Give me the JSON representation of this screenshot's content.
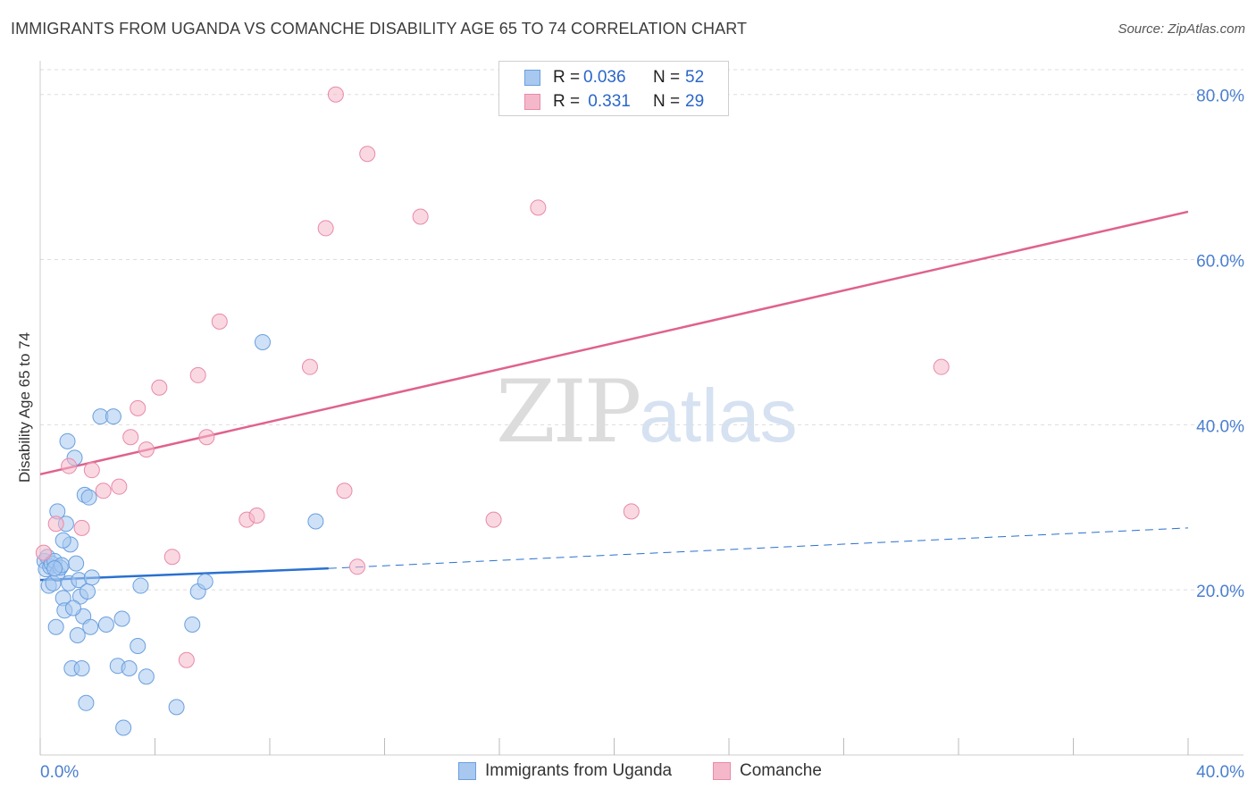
{
  "title": "IMMIGRANTS FROM UGANDA VS COMANCHE DISABILITY AGE 65 TO 74 CORRELATION CHART",
  "source": "Source: ZipAtlas.com",
  "watermark": {
    "zip": "ZIP",
    "atlas": "atlas"
  },
  "stats": [
    {
      "r_label": "R = ",
      "r_value": "0.036",
      "n_label": "N = ",
      "n_value": "52",
      "color": "#a8c8f0"
    },
    {
      "r_label": "R = ",
      "r_value": " 0.331",
      "n_label": "N = ",
      "n_value": "29",
      "color": "#f5b8cb"
    }
  ],
  "legend": [
    {
      "label": "Immigrants from Uganda",
      "color": "#a8c8f0"
    },
    {
      "label": "Comanche",
      "color": "#f5b8cb"
    }
  ],
  "colors": {
    "blue_fill": "#a8c8f0",
    "blue_stroke": "#6a9fde",
    "blue_line": "#2a70d0",
    "pink_fill": "#f5b8cb",
    "pink_stroke": "#e88aa8",
    "pink_line": "#e0628c",
    "axis_text": "#4a7fcf",
    "grid": "#dddddd"
  },
  "chart_data": {
    "type": "scatter",
    "title": "IMMIGRANTS FROM UGANDA VS COMANCHE DISABILITY AGE 65 TO 74 CORRELATION CHART",
    "xlabel": "",
    "ylabel": "Disability Age 65 to 74",
    "xlim": [
      0,
      40
    ],
    "ylim": [
      0,
      83
    ],
    "x_tick_labels": [
      "0.0%",
      "40.0%"
    ],
    "y_ticks": [
      20,
      40,
      60,
      80
    ],
    "y_tick_labels": [
      "20.0%",
      "40.0%",
      "60.0%",
      "80.0%"
    ],
    "series": [
      {
        "name": "Immigrants from Uganda",
        "points": [
          [
            0.15,
            23.5
          ],
          [
            0.2,
            22.5
          ],
          [
            0.25,
            24.0
          ],
          [
            0.3,
            20.5
          ],
          [
            0.35,
            22.8
          ],
          [
            0.4,
            23.2
          ],
          [
            0.45,
            20.8
          ],
          [
            0.5,
            23.5
          ],
          [
            0.55,
            15.5
          ],
          [
            0.6,
            22.0
          ],
          [
            0.6,
            29.5
          ],
          [
            0.7,
            22.7
          ],
          [
            0.75,
            23.0
          ],
          [
            0.8,
            19.0
          ],
          [
            0.85,
            17.5
          ],
          [
            0.9,
            28.0
          ],
          [
            0.95,
            38.0
          ],
          [
            1.0,
            20.8
          ],
          [
            1.05,
            25.5
          ],
          [
            1.1,
            10.5
          ],
          [
            1.2,
            36.0
          ],
          [
            1.25,
            23.2
          ],
          [
            1.3,
            14.5
          ],
          [
            1.35,
            21.2
          ],
          [
            1.4,
            19.2
          ],
          [
            1.45,
            10.5
          ],
          [
            1.5,
            16.8
          ],
          [
            1.55,
            31.5
          ],
          [
            1.6,
            6.3
          ],
          [
            1.65,
            19.8
          ],
          [
            1.7,
            31.2
          ],
          [
            1.75,
            15.5
          ],
          [
            1.8,
            21.5
          ],
          [
            2.1,
            41.0
          ],
          [
            2.3,
            15.8
          ],
          [
            2.55,
            41.0
          ],
          [
            2.7,
            10.8
          ],
          [
            2.85,
            16.5
          ],
          [
            3.1,
            10.5
          ],
          [
            3.4,
            13.2
          ],
          [
            3.5,
            20.5
          ],
          [
            3.7,
            9.5
          ],
          [
            4.75,
            5.8
          ],
          [
            5.5,
            19.8
          ],
          [
            5.3,
            15.8
          ],
          [
            5.75,
            21.0
          ],
          [
            7.75,
            50.0
          ],
          [
            9.6,
            28.3
          ],
          [
            2.9,
            3.3
          ],
          [
            0.5,
            22.6
          ],
          [
            0.8,
            26.0
          ],
          [
            1.15,
            17.8
          ]
        ],
        "trend": {
          "x": [
            0,
            10.05
          ],
          "y": [
            21.2,
            22.6
          ]
        },
        "trend_extended": {
          "x": [
            10.05,
            40
          ],
          "y": [
            22.6,
            27.5
          ]
        }
      },
      {
        "name": "Comanche",
        "points": [
          [
            0.12,
            24.5
          ],
          [
            0.55,
            28.0
          ],
          [
            1.0,
            35.0
          ],
          [
            1.45,
            27.5
          ],
          [
            1.8,
            34.5
          ],
          [
            2.2,
            32.0
          ],
          [
            2.75,
            32.5
          ],
          [
            3.15,
            38.5
          ],
          [
            3.4,
            42.0
          ],
          [
            3.7,
            37.0
          ],
          [
            4.15,
            44.5
          ],
          [
            4.6,
            24.0
          ],
          [
            5.1,
            11.5
          ],
          [
            5.5,
            46.0
          ],
          [
            5.8,
            38.5
          ],
          [
            6.25,
            52.5
          ],
          [
            7.2,
            28.5
          ],
          [
            7.55,
            29.0
          ],
          [
            9.4,
            47.0
          ],
          [
            9.95,
            63.8
          ],
          [
            10.3,
            80.0
          ],
          [
            10.6,
            32.0
          ],
          [
            11.05,
            22.8
          ],
          [
            11.4,
            72.8
          ],
          [
            13.25,
            65.2
          ],
          [
            15.8,
            28.5
          ],
          [
            17.35,
            66.3
          ],
          [
            20.6,
            29.5
          ],
          [
            31.4,
            47.0
          ]
        ],
        "trend": {
          "x": [
            0,
            40
          ],
          "y": [
            34.0,
            65.8
          ]
        }
      }
    ]
  }
}
